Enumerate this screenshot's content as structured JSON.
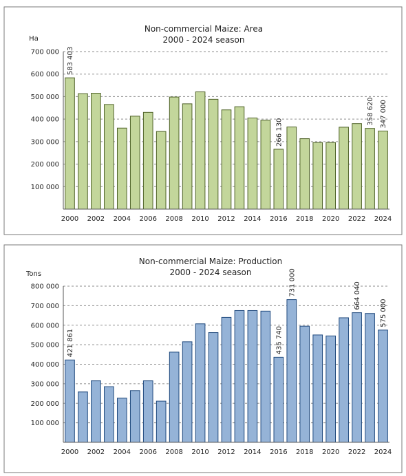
{
  "chart_data": [
    {
      "type": "bar",
      "title": "Non-commercial Maize: Area",
      "subtitle": "2000 - 2024 season",
      "xlabel": "",
      "ylabel": "Ha",
      "ylim": [
        0,
        700000
      ],
      "y_ticks": [
        {
          "value": 0,
          "label": ""
        },
        {
          "value": 100000,
          "label": "100 000"
        },
        {
          "value": 200000,
          "label": "200 000"
        },
        {
          "value": 300000,
          "label": "300 000"
        },
        {
          "value": 400000,
          "label": "400 000"
        },
        {
          "value": 500000,
          "label": "500 000"
        },
        {
          "value": 600000,
          "label": "600 000"
        },
        {
          "value": 700000,
          "label": "700 000"
        }
      ],
      "categories": [
        "2000",
        "2001",
        "2002",
        "2003",
        "2004",
        "2005",
        "2006",
        "2007",
        "2008",
        "2009",
        "2010",
        "2011",
        "2012",
        "2013",
        "2014",
        "2015",
        "2016",
        "2017",
        "2018",
        "2019",
        "2020",
        "2021",
        "2022",
        "2023",
        "2024"
      ],
      "x_tick_labels": [
        "2000",
        "",
        "2002",
        "",
        "2004",
        "",
        "2006",
        "",
        "2008",
        "",
        "2010",
        "",
        "2012",
        "",
        "2014",
        "",
        "2016",
        "",
        "2018",
        "",
        "2020",
        "",
        "2022",
        "",
        "2024"
      ],
      "values": [
        583403,
        513000,
        515000,
        465000,
        360000,
        413000,
        430000,
        345000,
        498000,
        468000,
        521000,
        488000,
        441000,
        455000,
        405000,
        395000,
        266130,
        365000,
        313000,
        296000,
        296000,
        364000,
        380000,
        358620,
        347000
      ],
      "data_labels": [
        {
          "index": 0,
          "text": "583 403"
        },
        {
          "index": 16,
          "text": "266 130"
        },
        {
          "index": 23,
          "text": "358 620"
        },
        {
          "index": 24,
          "text": "347 000"
        }
      ],
      "grid": true,
      "legend": "none",
      "bar_color": "#c3d69b",
      "bar_border_color": "#4f6228"
    },
    {
      "type": "bar",
      "title": "Non-commercial Maize: Production",
      "subtitle": "2000 - 2024 season",
      "xlabel": "",
      "ylabel": "Tons",
      "ylim": [
        0,
        800000
      ],
      "y_ticks": [
        {
          "value": 0,
          "label": ""
        },
        {
          "value": 100000,
          "label": "100 000"
        },
        {
          "value": 200000,
          "label": "200 000"
        },
        {
          "value": 300000,
          "label": "300 000"
        },
        {
          "value": 400000,
          "label": "400 000"
        },
        {
          "value": 500000,
          "label": "500 000"
        },
        {
          "value": 600000,
          "label": "600 000"
        },
        {
          "value": 700000,
          "label": "700 000"
        },
        {
          "value": 800000,
          "label": "800 000"
        }
      ],
      "categories": [
        "2000",
        "2001",
        "2002",
        "2003",
        "2004",
        "2005",
        "2006",
        "2007",
        "2008",
        "2009",
        "2010",
        "2011",
        "2012",
        "2013",
        "2014",
        "2015",
        "2016",
        "2017",
        "2018",
        "2019",
        "2020",
        "2021",
        "2022",
        "2023",
        "2024"
      ],
      "x_tick_labels": [
        "2000",
        "",
        "2002",
        "",
        "2004",
        "",
        "2006",
        "",
        "2008",
        "",
        "2010",
        "",
        "2012",
        "",
        "2014",
        "",
        "2016",
        "",
        "2018",
        "",
        "2020",
        "",
        "2022",
        "",
        "2024"
      ],
      "values": [
        421861,
        258000,
        315000,
        285000,
        226000,
        265000,
        315000,
        211000,
        462000,
        515000,
        607000,
        562000,
        640000,
        675000,
        675000,
        672000,
        435740,
        731000,
        595000,
        550000,
        545000,
        638000,
        664040,
        660000,
        575000
      ],
      "data_labels": [
        {
          "index": 0,
          "text": "421 861"
        },
        {
          "index": 16,
          "text": "435 740"
        },
        {
          "index": 17,
          "text": "731 000"
        },
        {
          "index": 22,
          "text": "664 040"
        },
        {
          "index": 24,
          "text": "575 000"
        }
      ],
      "grid": true,
      "legend": "none",
      "bar_color": "#95b3d7",
      "bar_border_color": "#1f497d"
    }
  ]
}
